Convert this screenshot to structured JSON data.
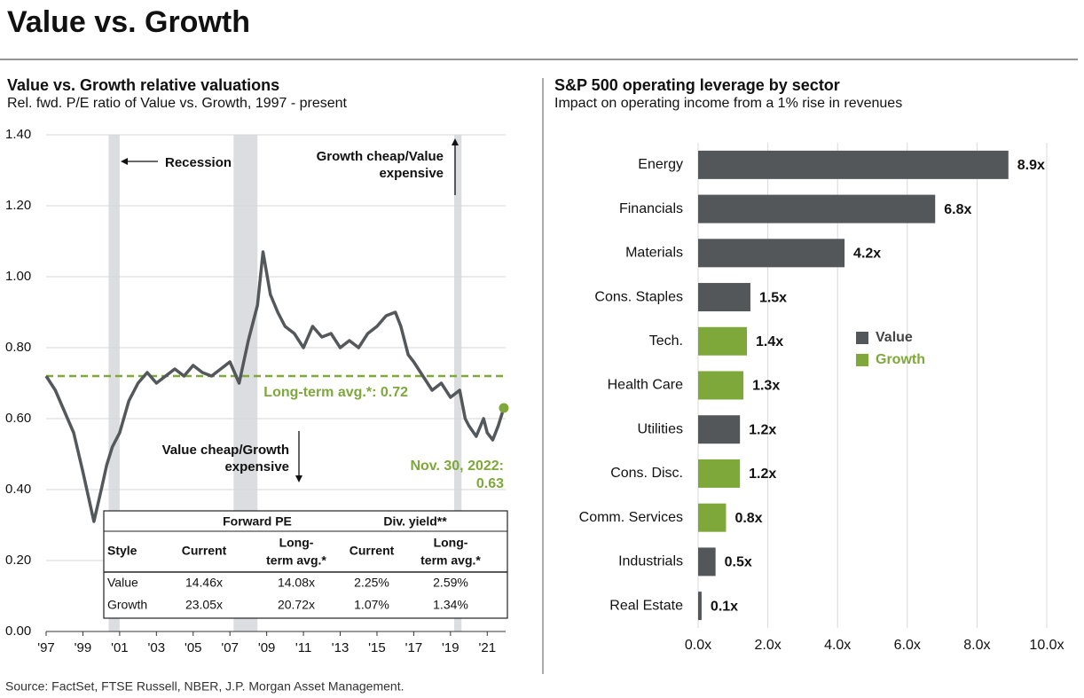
{
  "title": "Value vs. Growth",
  "source": "Source: FactSet, FTSE Russell, NBER, J.P. Morgan Asset Management.",
  "chart_data": [
    {
      "type": "line",
      "title": "Value vs. Growth relative valuations",
      "subtitle": "Rel. fwd. P/E ratio of Value vs. Growth, 1997 - present",
      "x": [
        1997.0,
        1997.5,
        1998.0,
        1998.5,
        1999.0,
        1999.3,
        1999.6,
        2000.0,
        2000.3,
        2000.6,
        2001.0,
        2001.5,
        2002.0,
        2002.5,
        2003.0,
        2003.5,
        2004.0,
        2004.5,
        2005.0,
        2005.5,
        2006.0,
        2006.5,
        2007.0,
        2007.5,
        2008.0,
        2008.5,
        2008.8,
        2009.2,
        2009.6,
        2010.0,
        2010.5,
        2011.0,
        2011.5,
        2012.0,
        2012.5,
        2013.0,
        2013.5,
        2014.0,
        2014.5,
        2015.0,
        2015.5,
        2016.0,
        2016.3,
        2016.7,
        2017.0,
        2017.5,
        2018.0,
        2018.5,
        2019.0,
        2019.5,
        2019.8,
        2020.0,
        2020.4,
        2020.8,
        2021.0,
        2021.3,
        2021.6,
        2021.9
      ],
      "values": [
        0.72,
        0.68,
        0.62,
        0.56,
        0.45,
        0.38,
        0.31,
        0.4,
        0.47,
        0.52,
        0.56,
        0.65,
        0.7,
        0.73,
        0.7,
        0.72,
        0.74,
        0.72,
        0.75,
        0.73,
        0.72,
        0.74,
        0.76,
        0.7,
        0.82,
        0.92,
        1.07,
        0.95,
        0.9,
        0.86,
        0.84,
        0.8,
        0.86,
        0.83,
        0.84,
        0.8,
        0.82,
        0.8,
        0.84,
        0.86,
        0.89,
        0.9,
        0.86,
        0.78,
        0.76,
        0.72,
        0.68,
        0.7,
        0.66,
        0.68,
        0.6,
        0.58,
        0.55,
        0.6,
        0.56,
        0.54,
        0.58,
        0.63
      ],
      "color": "#54585b",
      "xlim": [
        1997,
        2022
      ],
      "xticks": [
        {
          "value": 1997,
          "label": "'97"
        },
        {
          "value": 1999,
          "label": "'99"
        },
        {
          "value": 2001,
          "label": "'01"
        },
        {
          "value": 2003,
          "label": "'03"
        },
        {
          "value": 2005,
          "label": "'05"
        },
        {
          "value": 2007,
          "label": "'07"
        },
        {
          "value": 2009,
          "label": "'09"
        },
        {
          "value": 2011,
          "label": "'11"
        },
        {
          "value": 2013,
          "label": "'13"
        },
        {
          "value": 2015,
          "label": "'15"
        },
        {
          "value": 2017,
          "label": "'17"
        },
        {
          "value": 2019,
          "label": "'19"
        },
        {
          "value": 2021,
          "label": "'21"
        }
      ],
      "ylim": [
        0,
        1.4
      ],
      "yticks": [
        {
          "value": 0,
          "label": "0.00"
        },
        {
          "value": 0.2,
          "label": "0.20"
        },
        {
          "value": 0.4,
          "label": "0.40"
        },
        {
          "value": 0.6,
          "label": "0.60"
        },
        {
          "value": 0.8,
          "label": "0.80"
        },
        {
          "value": 1.0,
          "label": "1.00"
        },
        {
          "value": 1.2,
          "label": "1.20"
        },
        {
          "value": 1.4,
          "label": "1.40"
        }
      ],
      "grid": true,
      "recessions": [
        [
          2000.4,
          2001.0
        ],
        [
          2007.2,
          2008.5
        ],
        [
          2019.2,
          2019.6
        ]
      ],
      "recession_color": "#dcdde0",
      "avg": 0.72,
      "avg_color": "#7ea83a",
      "avg_label": "Long-term avg.*:  0.72",
      "annotations": {
        "recession": "Recession",
        "growth_cheap": [
          "Growth cheap/Value",
          "expensive"
        ],
        "value_cheap": [
          "Value cheap/Growth",
          "expensive"
        ],
        "latest": [
          "Nov. 30, 2022:",
          "0.63"
        ]
      }
    },
    {
      "type": "barh",
      "title": "S&P 500 operating leverage by sector",
      "subtitle": "Impact on operating income from a 1% rise in revenues",
      "categories": [
        "Energy",
        "Financials",
        "Materials",
        "Cons. Staples",
        "Tech.",
        "Health Care",
        "Utilities",
        "Cons. Disc.",
        "Comm. Services",
        "Industrials",
        "Real Estate"
      ],
      "series": [
        {
          "name": "Value",
          "color": "#53575a",
          "values": [
            8.9,
            6.8,
            4.2,
            1.5,
            null,
            null,
            1.2,
            null,
            null,
            0.5,
            0.1
          ],
          "value_labels": [
            "8.9x",
            "6.8x",
            "4.2x",
            "1.5x",
            null,
            null,
            "1.2x",
            null,
            null,
            "0.5x",
            "0.1x"
          ]
        },
        {
          "name": "Growth",
          "color": "#7ea83a",
          "values": [
            null,
            null,
            null,
            null,
            1.4,
            1.3,
            null,
            1.2,
            0.8,
            null,
            null
          ],
          "value_labels": [
            null,
            null,
            null,
            null,
            "1.4x",
            "1.3x",
            null,
            "1.2x",
            "0.8x",
            null,
            null
          ]
        }
      ],
      "xlim": [
        0,
        10
      ],
      "xticks": [
        {
          "value": 0,
          "label": "0.0x"
        },
        {
          "value": 2,
          "label": "2.0x"
        },
        {
          "value": 4,
          "label": "4.0x"
        },
        {
          "value": 6,
          "label": "6.0x"
        },
        {
          "value": 8,
          "label": "8.0x"
        },
        {
          "value": 10,
          "label": "10.0x"
        }
      ],
      "grid": true
    }
  ],
  "table": {
    "groups": [
      "Forward PE",
      "Div. yield**"
    ],
    "columns": [
      [
        "Style"
      ],
      [
        "Current"
      ],
      [
        "Long-",
        "term avg.*"
      ],
      [
        "Current"
      ],
      [
        "Long-",
        "term avg.*"
      ]
    ],
    "rows": [
      [
        "Value",
        "14.46x",
        "14.08x",
        "2.25%",
        "2.59%"
      ],
      [
        "Growth",
        "23.05x",
        "20.72x",
        "1.07%",
        "1.34%"
      ]
    ]
  }
}
